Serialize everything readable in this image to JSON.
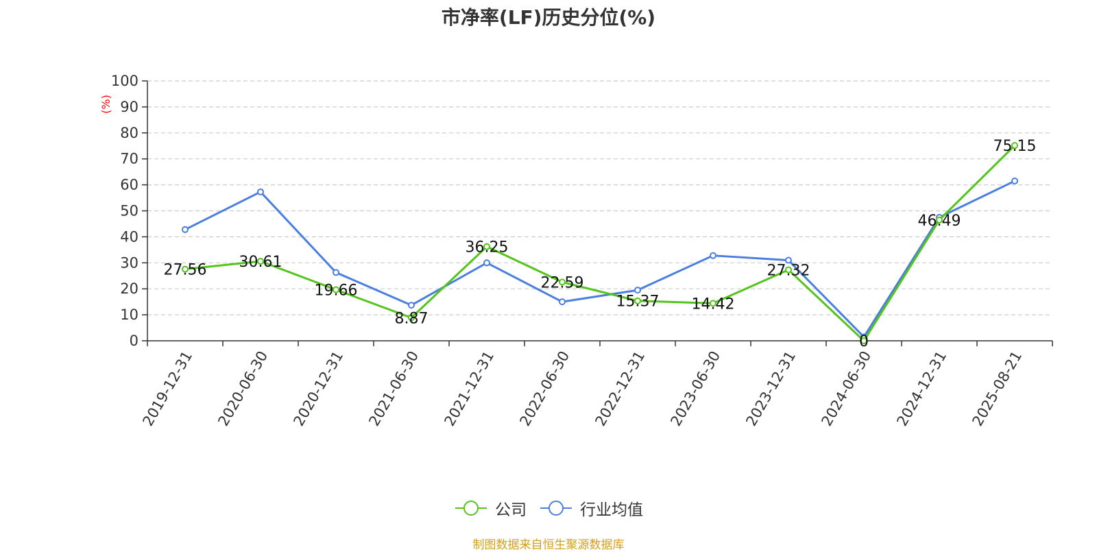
{
  "chart_data": {
    "type": "line",
    "title": "市净率(LF)历史分位(%)",
    "ylabel": "(%)",
    "ylim": [
      0,
      100
    ],
    "yticks": [
      0,
      10,
      20,
      30,
      40,
      50,
      60,
      70,
      80,
      90,
      100
    ],
    "grid": true,
    "legend_position": "bottom",
    "categories": [
      "2019-12-31",
      "2020-06-30",
      "2020-12-31",
      "2021-06-30",
      "2021-12-31",
      "2022-06-30",
      "2022-12-31",
      "2023-06-30",
      "2023-12-31",
      "2024-06-30",
      "2024-12-31",
      "2025-08-21"
    ],
    "series": [
      {
        "name": "公司",
        "color": "#52c41a",
        "values": [
          27.56,
          30.61,
          19.66,
          8.87,
          36.25,
          22.59,
          15.37,
          14.42,
          27.32,
          0,
          46.49,
          75.15
        ],
        "labels": [
          "27.56",
          "30.61",
          "19.66",
          "8.87",
          "36.25",
          "22.59",
          "15.37",
          "14.42",
          "27.32",
          "0",
          "46.49",
          "75.15"
        ]
      },
      {
        "name": "行业均值",
        "color": "#4a7fe0",
        "values": [
          42.8,
          57.3,
          26.3,
          13.7,
          30.0,
          15.0,
          19.5,
          32.8,
          31.0,
          1.5,
          47.5,
          61.5
        ]
      }
    ],
    "y_unit_color": "#ff0000"
  },
  "source_note": "制图数据来自恒生聚源数据库"
}
